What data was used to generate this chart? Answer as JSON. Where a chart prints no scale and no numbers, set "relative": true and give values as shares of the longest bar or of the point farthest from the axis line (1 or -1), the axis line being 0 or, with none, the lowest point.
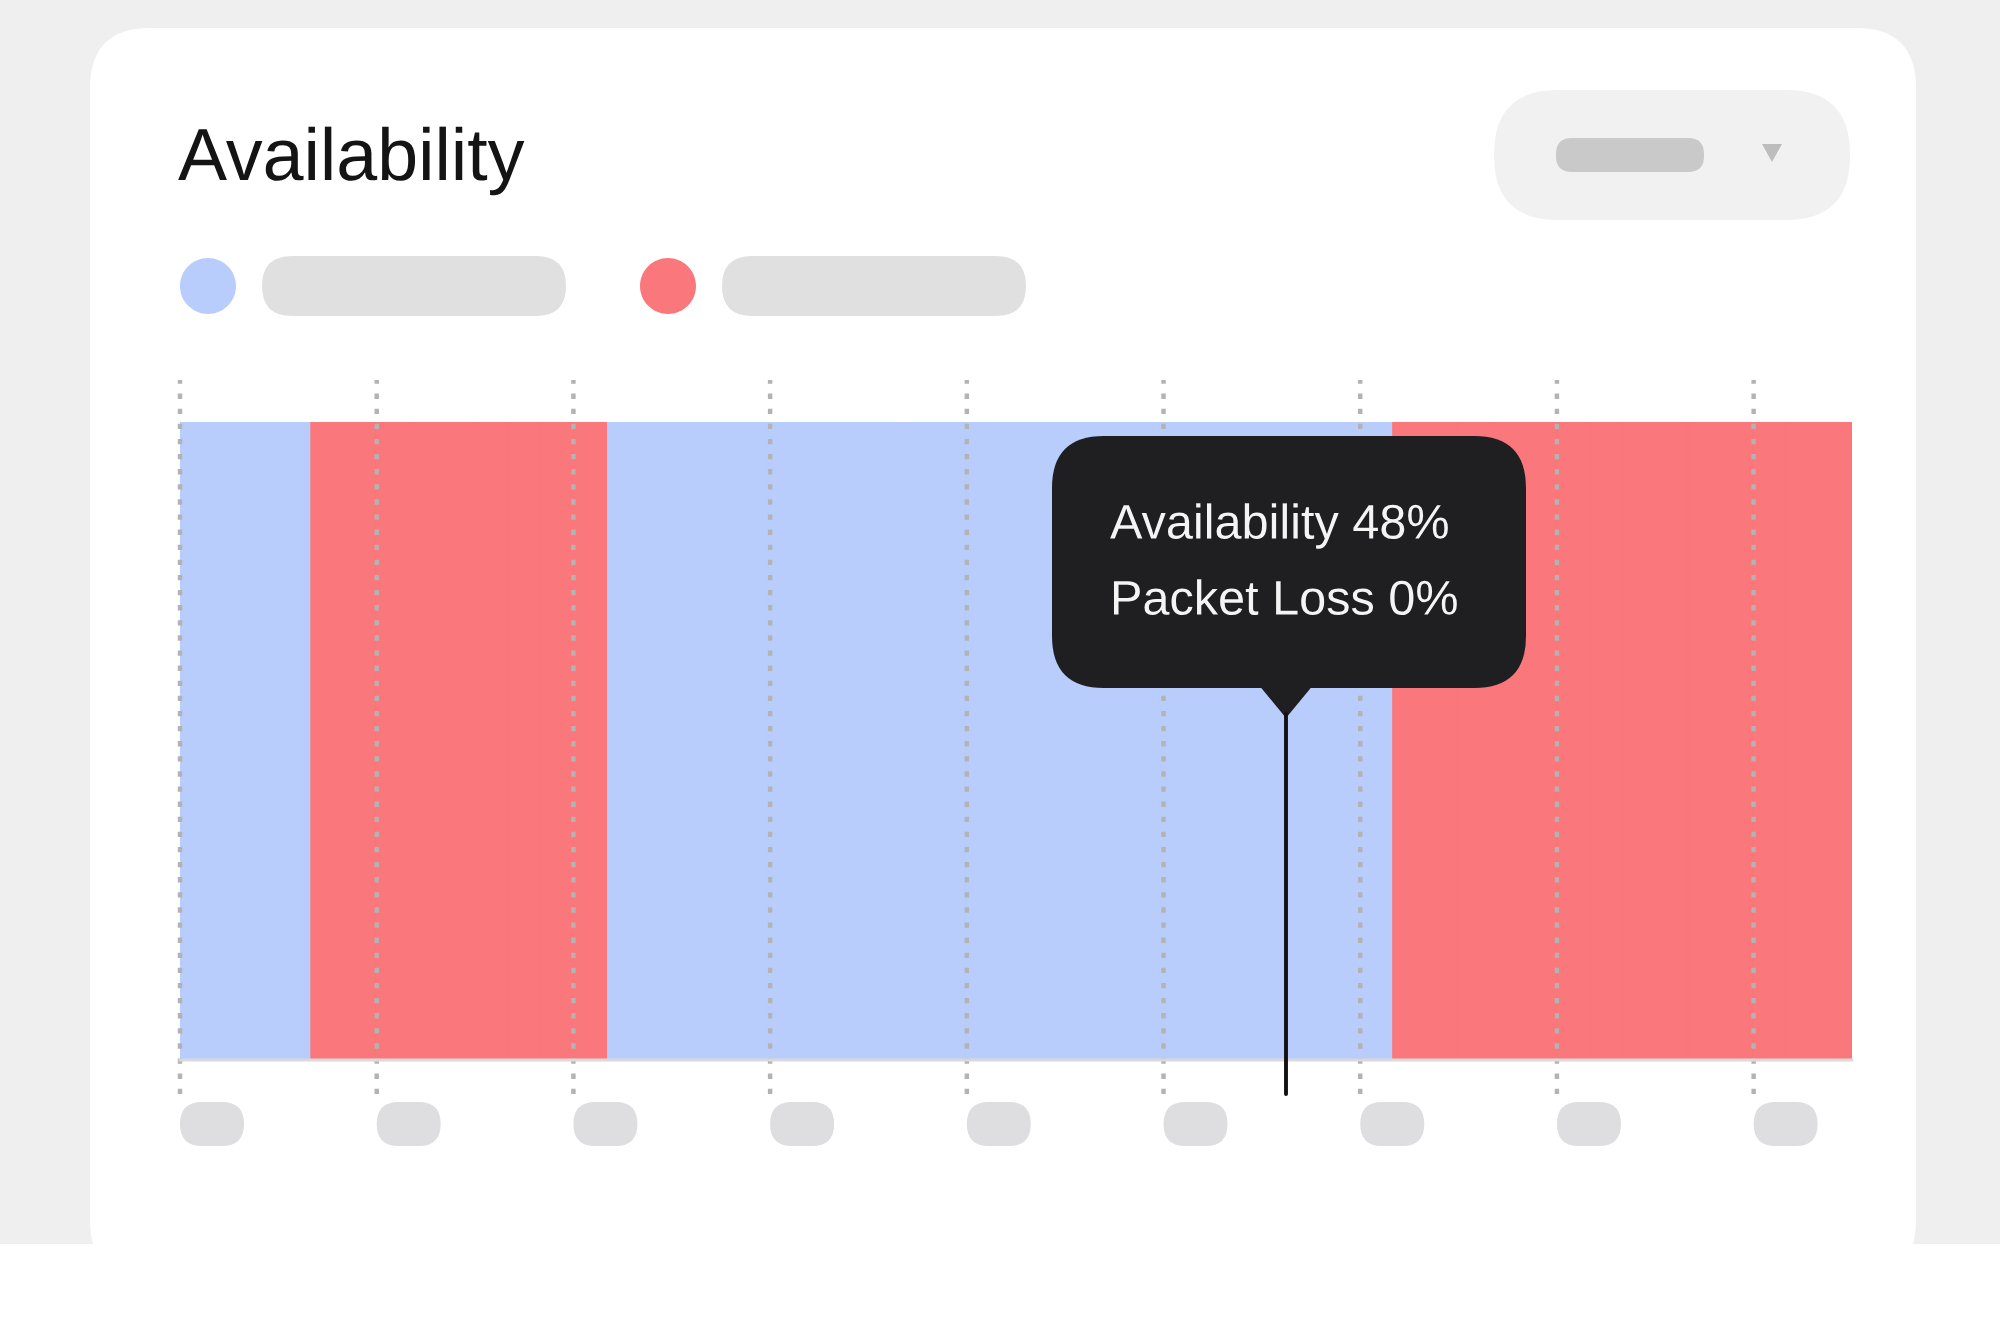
{
  "chart_data": {
    "type": "bar",
    "title": "Availability",
    "categories": [
      null,
      null,
      null,
      null,
      null,
      null,
      null,
      null,
      null,
      null,
      null,
      null,
      null,
      null,
      null,
      null,
      null,
      null,
      null,
      null,
      null,
      null,
      null,
      null,
      null,
      null,
      null,
      null,
      null,
      null,
      null,
      null,
      null,
      null,
      null,
      null,
      null,
      null,
      null,
      null,
      null,
      null,
      null,
      null,
      null,
      null,
      null,
      null,
      null,
      null,
      null
    ],
    "stacked": true,
    "relative": true,
    "grid": "x",
    "series": [
      {
        "color": "#b8cdfc",
        "values": [
          1,
          1,
          1,
          1,
          null,
          null,
          null,
          null,
          null,
          null,
          null,
          null,
          null,
          1,
          1,
          1,
          1,
          1,
          1,
          1,
          1,
          1,
          1,
          1,
          1,
          1,
          1,
          1,
          1,
          1,
          1,
          1,
          1,
          1,
          1,
          1,
          1,
          null,
          null,
          null,
          null,
          null,
          null,
          null,
          null,
          null,
          null,
          null,
          null,
          null,
          null
        ]
      },
      {
        "color": "#fa777b",
        "values": [
          null,
          null,
          null,
          null,
          1,
          1,
          1,
          1,
          1,
          1,
          1,
          1,
          1,
          null,
          null,
          null,
          null,
          null,
          null,
          null,
          null,
          null,
          null,
          null,
          null,
          null,
          null,
          null,
          null,
          null,
          null,
          null,
          null,
          null,
          null,
          null,
          null,
          1,
          1,
          1,
          1,
          1,
          1,
          1,
          1,
          1,
          1,
          1,
          1,
          1,
          1
        ]
      }
    ],
    "annotations": [
      "Availability 48%",
      "Packet Loss 0%"
    ]
  }
}
